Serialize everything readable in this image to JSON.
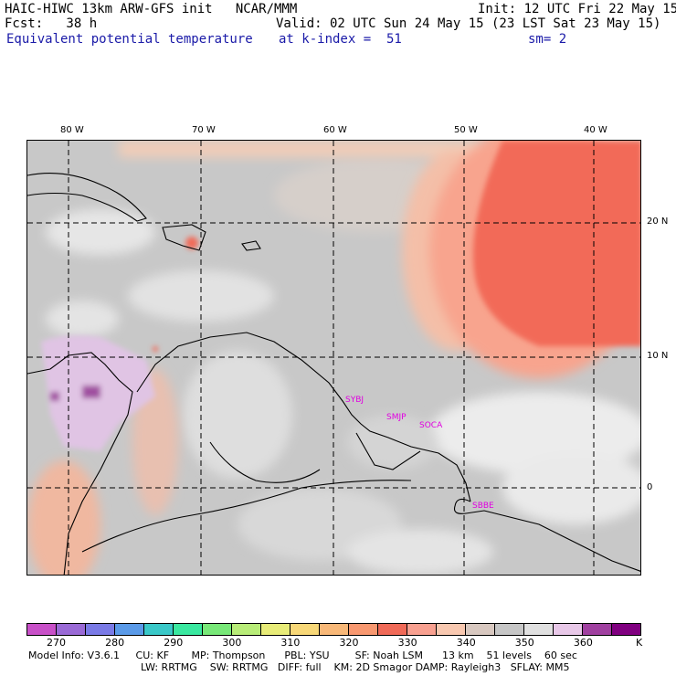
{
  "header": {
    "title_left": "HAIC-HIWC 13km ARW-GFS init   NCAR/MMM",
    "init": "Init: 12 UTC Fri 22 May 15",
    "fcst": "Fcst:   38 h",
    "valid": "Valid: 02 UTC Sun 24 May 15 (23 LST Sat 23 May 15)",
    "field": "Equivalent potential temperature",
    "level": "at k-index =  51",
    "smooth": "sm= 2"
  },
  "axes": {
    "lon_labels": [
      "80 W",
      "70 W",
      "60 W",
      "50 W",
      "40 W"
    ],
    "lat_labels": [
      "20 N",
      "10 N",
      "0"
    ]
  },
  "stations": [
    "SYBJ",
    "SMJP",
    "SOCA",
    "SBBE"
  ],
  "colorbar": {
    "colors": [
      "#c850c8",
      "#9a6ad6",
      "#7a7ae6",
      "#5a9ae8",
      "#3ac8c8",
      "#3ae8a0",
      "#78e878",
      "#b8ec78",
      "#e8ec78",
      "#f8d878",
      "#f8b878",
      "#f89870",
      "#f06a58",
      "#f8a090",
      "#f8c8b0",
      "#d8c8c0",
      "#c6c6c6",
      "#e0e0e0",
      "#e8c8e8",
      "#a040a0",
      "#800080"
    ],
    "labels": [
      "270",
      "280",
      "290",
      "300",
      "310",
      "320",
      "330",
      "340",
      "350",
      "360",
      "K"
    ]
  },
  "model_info": {
    "line1": "Model Info: V3.6.1     CU: KF       MP: Thompson      PBL: YSU        SF: Noah LSM      13 km    51 levels    60 sec",
    "line2": "LW: RRTMG    SW: RRTMG   DIFF: full    KM: 2D Smagor DAMP: Rayleigh3   SFLAY: MM5"
  }
}
